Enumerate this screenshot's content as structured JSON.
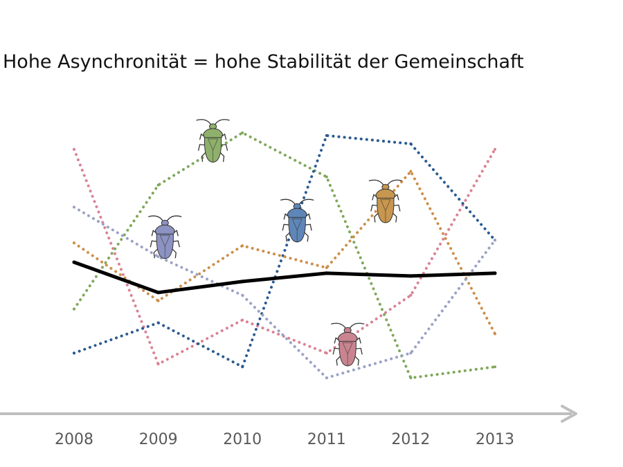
{
  "chart_data": {
    "type": "line",
    "title": "Hohe Asynchronität = hohe Stabilität der Gemeinschaft",
    "xlabel": "",
    "ylabel": "",
    "x": [
      "2008",
      "2009",
      "2010",
      "2011",
      "2012",
      "2013"
    ],
    "ylim": [
      0,
      100
    ],
    "grid": false,
    "legend": "none",
    "series": [
      {
        "key": "pink",
        "color": "#d98293",
        "style": "dotted",
        "values": [
          91,
          13,
          29,
          17,
          38,
          91
        ]
      },
      {
        "key": "green",
        "color": "#7fa85a",
        "style": "dotted",
        "values": [
          33,
          78,
          97,
          81,
          8,
          12
        ]
      },
      {
        "key": "blue",
        "color": "#2a5a91",
        "style": "dotted",
        "values": [
          17,
          28,
          12,
          96,
          93,
          58
        ]
      },
      {
        "key": "orange",
        "color": "#cc8f4a",
        "style": "dotted",
        "values": [
          57,
          36,
          56,
          48,
          83,
          24
        ]
      },
      {
        "key": "purple",
        "color": "#9aa2c6",
        "style": "dotted",
        "values": [
          70,
          52,
          38,
          8,
          17,
          58
        ]
      },
      {
        "key": "total",
        "color": "#000000",
        "style": "solid",
        "values": [
          50,
          39,
          43,
          46,
          45,
          46
        ]
      }
    ],
    "bugs": [
      {
        "key": "green-bug",
        "color": "#8fb06a",
        "x": 2009.65,
        "y": 94
      },
      {
        "key": "purple-bug",
        "color": "#8c93c2",
        "x": 2009.08,
        "y": 59
      },
      {
        "key": "blue-bug",
        "color": "#5f86b8",
        "x": 2010.65,
        "y": 65
      },
      {
        "key": "orange-bug",
        "color": "#c7964f",
        "x": 2011.7,
        "y": 72
      },
      {
        "key": "pink-bug",
        "color": "#c98490",
        "x": 2011.25,
        "y": 20
      }
    ],
    "axis_color": "#bfbfbf"
  }
}
